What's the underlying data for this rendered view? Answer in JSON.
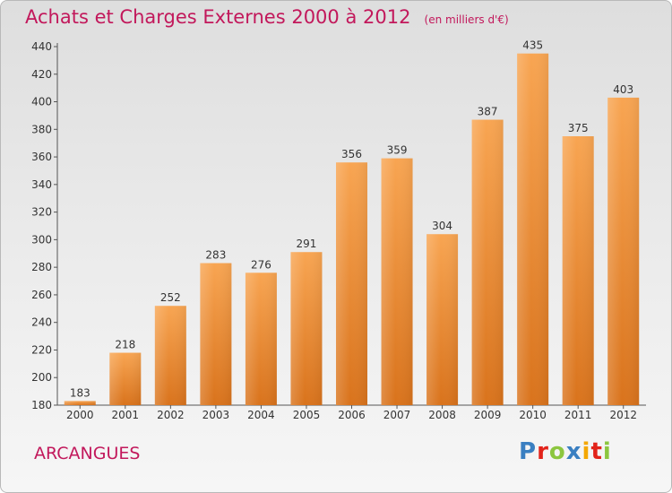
{
  "header": {
    "title": "Achats et Charges Externes 2000 à 2012",
    "unit": "(en milliers d'€)"
  },
  "footer": {
    "place": "ARCANGUES",
    "logo_letters": [
      "P",
      "r",
      "o",
      "x",
      "i",
      "t",
      "i"
    ],
    "logo_colors": [
      "#3a7fc1",
      "#e2231a",
      "#8cc63f",
      "#3a7fc1",
      "#f4a700",
      "#e2231a",
      "#8cc63f"
    ]
  },
  "chart_data": {
    "type": "bar",
    "categories": [
      "2000",
      "2001",
      "2002",
      "2003",
      "2004",
      "2005",
      "2006",
      "2007",
      "2008",
      "2009",
      "2010",
      "2011",
      "2012"
    ],
    "values": [
      183,
      218,
      252,
      283,
      276,
      291,
      356,
      359,
      304,
      387,
      435,
      375,
      403
    ],
    "xlabel": "",
    "ylabel": "",
    "ylim": [
      180,
      440
    ],
    "yticks": [
      180,
      200,
      220,
      240,
      260,
      280,
      300,
      320,
      340,
      360,
      380,
      400,
      420,
      440
    ],
    "grid": false,
    "bar_color": "#f0993c"
  }
}
